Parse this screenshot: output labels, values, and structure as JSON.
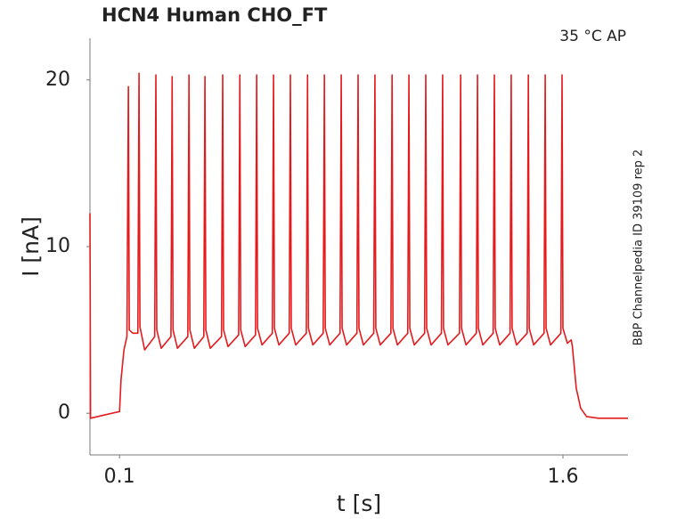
{
  "chart_data": {
    "type": "line",
    "title": "HCN4  Human  CHO_FT",
    "annotation": "35 °C  AP",
    "side_label": "BBP Channelpedia ID 39109 rep 2",
    "xlabel": "t [s]",
    "ylabel": "I [nA]",
    "color": "#e41a1c",
    "xlim": [
      0,
      1.82
    ],
    "ylim": [
      -2.5,
      22.5
    ],
    "xticks": [
      0.1,
      1.6
    ],
    "yticks": [
      0,
      10,
      20
    ],
    "grid": false,
    "x": [
      0,
      0.002,
      0.05,
      0.1,
      0.105,
      0.115,
      0.125,
      0.13,
      0.133,
      0.145,
      0.162,
      0.166,
      0.169,
      0.185,
      0.219,
      0.223,
      0.226,
      0.241,
      0.274,
      0.278,
      0.281,
      0.296,
      0.331,
      0.335,
      0.338,
      0.353,
      0.385,
      0.389,
      0.392,
      0.407,
      0.445,
      0.449,
      0.452,
      0.467,
      0.503,
      0.507,
      0.51,
      0.525,
      0.56,
      0.564,
      0.567,
      0.582,
      0.617,
      0.621,
      0.624,
      0.639,
      0.674,
      0.678,
      0.681,
      0.696,
      0.732,
      0.736,
      0.739,
      0.754,
      0.789,
      0.793,
      0.796,
      0.811,
      0.846,
      0.85,
      0.853,
      0.868,
      0.903,
      0.907,
      0.91,
      0.925,
      0.96,
      0.964,
      0.967,
      0.982,
      1.018,
      1.022,
      1.025,
      1.04,
      1.075,
      1.079,
      1.082,
      1.097,
      1.132,
      1.136,
      1.139,
      1.154,
      1.189,
      1.193,
      1.196,
      1.211,
      1.25,
      1.254,
      1.257,
      1.272,
      1.307,
      1.311,
      1.314,
      1.329,
      1.364,
      1.368,
      1.371,
      1.386,
      1.421,
      1.425,
      1.428,
      1.443,
      1.479,
      1.483,
      1.486,
      1.501,
      1.536,
      1.54,
      1.543,
      1.558,
      1.593,
      1.597,
      1.6,
      1.615,
      1.628,
      1.632,
      1.645,
      1.66,
      1.68,
      1.72,
      1.82
    ],
    "values": [
      12,
      -0.3,
      -0.1,
      0.1,
      2,
      3.8,
      4.6,
      19.6,
      5.0,
      4.8,
      4.8,
      20.4,
      5.2,
      3.8,
      4.6,
      20.3,
      5.0,
      3.9,
      4.6,
      20.2,
      5.0,
      3.9,
      4.6,
      20.3,
      5.0,
      3.9,
      4.6,
      20.2,
      5.0,
      3.9,
      4.6,
      20.3,
      5.0,
      4.0,
      4.7,
      20.3,
      5.0,
      4.0,
      4.7,
      20.3,
      5.1,
      4.1,
      4.8,
      20.3,
      5.1,
      4.1,
      4.8,
      20.3,
      5.1,
      4.1,
      4.8,
      20.3,
      5.1,
      4.1,
      4.8,
      20.3,
      5.1,
      4.1,
      4.8,
      20.3,
      5.1,
      4.1,
      4.8,
      20.3,
      5.1,
      4.1,
      4.8,
      20.3,
      5.1,
      4.1,
      4.8,
      20.3,
      5.1,
      4.1,
      4.8,
      20.3,
      5.1,
      4.1,
      4.8,
      20.3,
      5.1,
      4.1,
      4.8,
      20.3,
      5.1,
      4.1,
      4.8,
      20.3,
      5.1,
      4.1,
      4.8,
      20.3,
      5.1,
      4.1,
      4.8,
      20.3,
      5.1,
      4.1,
      4.8,
      20.3,
      5.1,
      4.1,
      4.8,
      20.3,
      5.1,
      4.1,
      4.8,
      20.3,
      5.1,
      4.1,
      4.8,
      20.3,
      5.1,
      4.2,
      4.4,
      4.0,
      1.5,
      0.3,
      -0.2,
      -0.3,
      -0.3
    ]
  }
}
